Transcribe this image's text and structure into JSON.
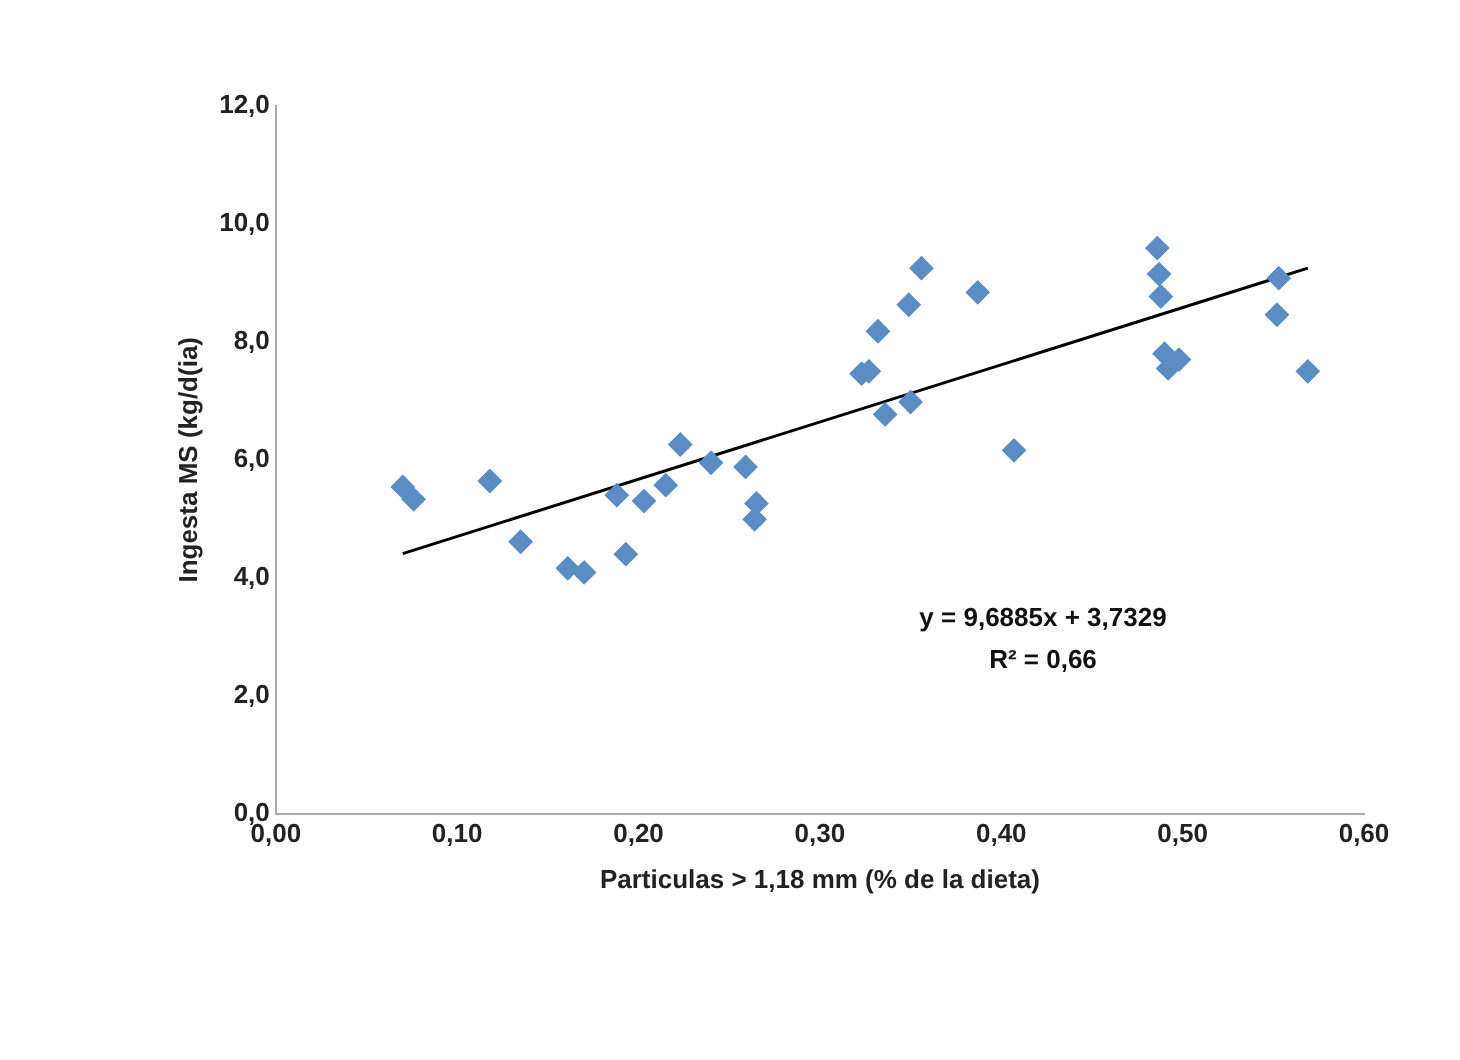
{
  "chart_data": {
    "type": "scatter",
    "xlabel": "Particulas > 1,18 mm (% de la dieta)",
    "ylabel": "Ingesta MS (kg/d(ia)",
    "marker": "diamond",
    "grid": false,
    "legend": false,
    "xlim": [
      0,
      0.6
    ],
    "ylim": [
      0,
      12
    ],
    "xticks": [
      {
        "value": 0,
        "label": "0,00"
      },
      {
        "value": 0.1,
        "label": "0,10"
      },
      {
        "value": 0.2,
        "label": "0,20"
      },
      {
        "value": 0.3,
        "label": "0,30"
      },
      {
        "value": 0.4,
        "label": "0,40"
      },
      {
        "value": 0.5,
        "label": "0,50"
      },
      {
        "value": 0.6,
        "label": "0,60"
      }
    ],
    "yticks": [
      {
        "value": 0,
        "label": "0,0"
      },
      {
        "value": 2,
        "label": "2,0"
      },
      {
        "value": 4,
        "label": "4,0"
      },
      {
        "value": 6,
        "label": "6,0"
      },
      {
        "value": 8,
        "label": "8,0"
      },
      {
        "value": 10,
        "label": "10,0"
      },
      {
        "value": 12,
        "label": "12,0"
      }
    ],
    "annotations": [
      "y = 9,6885x + 3,7329",
      "R² = 0,66"
    ],
    "series": [
      {
        "type": "scatter",
        "color": "#5b8cc4",
        "x": [
          0.07,
          0.076,
          0.118,
          0.135,
          0.161,
          0.17,
          0.188,
          0.193,
          0.203,
          0.215,
          0.223,
          0.24,
          0.259,
          0.264,
          0.265,
          0.323,
          0.327,
          0.332,
          0.336,
          0.349,
          0.35,
          0.356,
          0.387,
          0.407,
          0.486,
          0.487,
          0.488,
          0.49,
          0.492,
          0.498,
          0.552,
          0.553,
          0.569
        ],
        "values": [
          5.54,
          5.33,
          5.64,
          4.61,
          4.16,
          4.09,
          5.4,
          4.4,
          5.3,
          5.57,
          6.26,
          5.95,
          5.88,
          4.99,
          5.26,
          7.46,
          7.5,
          8.18,
          6.77,
          8.63,
          6.98,
          9.25,
          8.84,
          6.16,
          9.59,
          9.15,
          8.77,
          7.8,
          7.55,
          7.7,
          8.46,
          9.08,
          7.5
        ]
      },
      {
        "type": "line",
        "color": "#000000",
        "marker": "none",
        "x": [
          0.07,
          0.569
        ],
        "values": [
          4.41,
          9.25
        ]
      }
    ]
  }
}
